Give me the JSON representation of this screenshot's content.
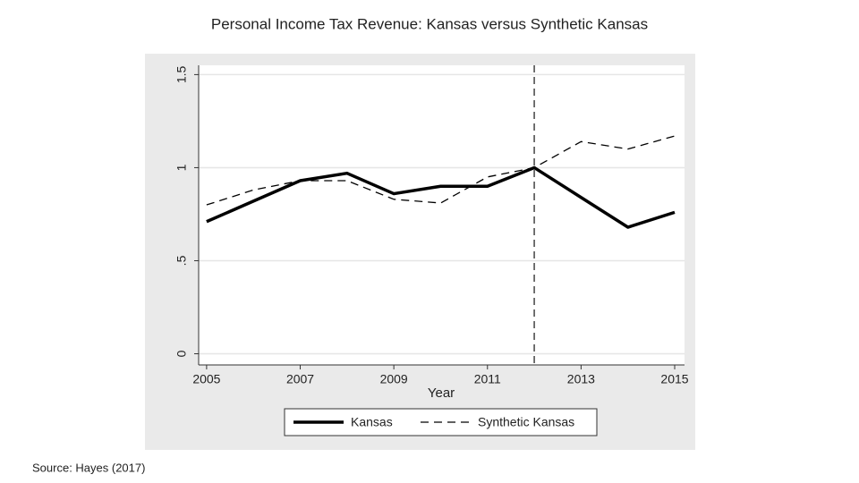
{
  "chart_data": {
    "type": "line",
    "title": "Personal Income Tax Revenue: Kansas versus Synthetic Kansas",
    "source": "Source: Hayes (2017)",
    "xlabel": "Year",
    "x": [
      2005,
      2006,
      2007,
      2008,
      2009,
      2010,
      2011,
      2012,
      2013,
      2014,
      2015
    ],
    "series": [
      {
        "name": "Kansas",
        "color": "#000000",
        "dash": false,
        "values": [
          0.71,
          0.82,
          0.93,
          0.97,
          0.86,
          0.9,
          0.9,
          1.0,
          0.84,
          0.68,
          0.76
        ]
      },
      {
        "name": "Synthetic Kansas",
        "color": "#000000",
        "dash": true,
        "values": [
          0.8,
          0.88,
          0.93,
          0.93,
          0.83,
          0.81,
          0.95,
          1.0,
          1.14,
          1.1,
          1.17
        ]
      }
    ],
    "reference_line_x": 2012,
    "xlim": [
      2004.83,
      2015.21
    ],
    "ylim": [
      -0.06,
      1.55
    ],
    "xticks": [
      2005,
      2007,
      2009,
      2011,
      2013,
      2015
    ],
    "yticks": [
      0,
      {
        "value": 0.5,
        "label": ".5"
      },
      1,
      1.5
    ],
    "grid": true,
    "legend": "bottom"
  }
}
